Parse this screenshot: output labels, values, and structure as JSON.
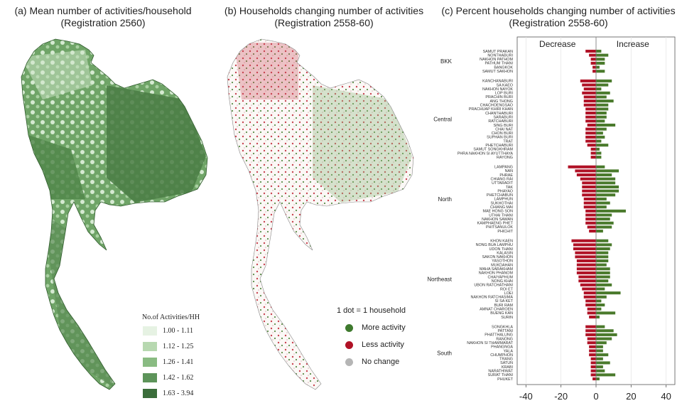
{
  "panel_a": {
    "title_line1": "(a) Mean number of activities/household",
    "title_line2": "(Registration 2560)",
    "legend_title": "No.of Activities/HH",
    "legend": [
      {
        "label": "1.00 - 1.11",
        "color": "#e6f2e3"
      },
      {
        "label": "1.12 - 1.25",
        "color": "#b7d8b0"
      },
      {
        "label": "1.26 - 1.41",
        "color": "#89bb82"
      },
      {
        "label": "1.42 - 1.62",
        "color": "#5d945a"
      },
      {
        "label": "1.63 - 3.94",
        "color": "#3a6d3a"
      }
    ]
  },
  "panel_b": {
    "title_line1": "(b) Households changing number of activities",
    "title_line2": "(Registration 2558-60)",
    "legend_note": "1 dot = 1 household",
    "legend": [
      {
        "label": "More activity",
        "color": "#3f7a2e"
      },
      {
        "label": "Less activity",
        "color": "#b01226"
      },
      {
        "label": "No change",
        "color": "#b5b5b5"
      }
    ]
  },
  "colors": {
    "decrease": "#b01226",
    "increase": "#4a7a2c",
    "map_dark": "#3e6f3a",
    "map_light": "#e6f2e3"
  },
  "chart_data": {
    "type": "bar",
    "orientation": "horizontal-diverging",
    "title_line1": "(c) Percent households changing number of activities",
    "title_line2": "(Registration 2558-60)",
    "decrease_label": "Decrease",
    "increase_label": "Increase",
    "xlim": [
      -45,
      45
    ],
    "xticks": [
      -40,
      -20,
      0,
      20,
      40
    ],
    "xtick_labels": [
      "-40",
      "-20",
      "0",
      "20",
      "40"
    ],
    "groups": [
      {
        "name": "BKK",
        "provinces": [
          {
            "name": "SAMUT PRAKAN",
            "decrease": -6,
            "increase": 3
          },
          {
            "name": "NONTHABURI",
            "decrease": -4,
            "increase": 7
          },
          {
            "name": "NAKHON PATHOM",
            "decrease": -3,
            "increase": 5
          },
          {
            "name": "PATHUM THANI",
            "decrease": -3,
            "increase": 5
          },
          {
            "name": "BANGKOK",
            "decrease": -2,
            "increase": 2
          },
          {
            "name": "SAMUT SAKHON",
            "decrease": -2,
            "increase": 5
          }
        ]
      },
      {
        "name": "Central",
        "provinces": [
          {
            "name": "KANCHANABURI",
            "decrease": -9,
            "increase": 9
          },
          {
            "name": "SA KAEO",
            "decrease": -8,
            "increase": 7
          },
          {
            "name": "NAKHON NAYOK",
            "decrease": -7,
            "increase": 3
          },
          {
            "name": "LOP BURI",
            "decrease": -8,
            "increase": 8
          },
          {
            "name": "PRACHIN BURI",
            "decrease": -7,
            "increase": 6
          },
          {
            "name": "ANG THONG",
            "decrease": -7,
            "increase": 10
          },
          {
            "name": "CHACHOENGSAO",
            "decrease": -7,
            "increase": 7
          },
          {
            "name": "PRACHUAP KHIRI KHAN",
            "decrease": -6,
            "increase": 7
          },
          {
            "name": "CHANTHABURI",
            "decrease": -6,
            "increase": 6
          },
          {
            "name": "SARABURI",
            "decrease": -6,
            "increase": 6
          },
          {
            "name": "RATCHABURI",
            "decrease": -6,
            "increase": 5
          },
          {
            "name": "SING BURI",
            "decrease": -5,
            "increase": 11
          },
          {
            "name": "CHAI NAT",
            "decrease": -6,
            "increase": 6
          },
          {
            "name": "CHON BURI",
            "decrease": -6,
            "increase": 4
          },
          {
            "name": "SUPHAN BURI",
            "decrease": -6,
            "increase": 5
          },
          {
            "name": "TRAT",
            "decrease": -6,
            "increase": 3
          },
          {
            "name": "PHETCHABURI",
            "decrease": -5,
            "increase": 7
          },
          {
            "name": "SAMUT SONGKHRAM",
            "decrease": -3,
            "increase": 2
          },
          {
            "name": "PHRA NAKHON SI AYUTTHAYA",
            "decrease": -3,
            "increase": 3
          },
          {
            "name": "RAYONG",
            "decrease": -3,
            "increase": 3
          }
        ]
      },
      {
        "name": "North",
        "provinces": [
          {
            "name": "LAMPANG",
            "decrease": -16,
            "increase": 5
          },
          {
            "name": "NAN",
            "decrease": -12,
            "increase": 13
          },
          {
            "name": "PHRAE",
            "decrease": -11,
            "increase": 9
          },
          {
            "name": "CHIANG RAI",
            "decrease": -9,
            "increase": 11
          },
          {
            "name": "UTTARADIT",
            "decrease": -8,
            "increase": 11
          },
          {
            "name": "TAK",
            "decrease": -8,
            "increase": 13
          },
          {
            "name": "PHAYAO",
            "decrease": -8,
            "increase": 13
          },
          {
            "name": "PHETCHABUN",
            "decrease": -8,
            "increase": 11
          },
          {
            "name": "LAMPHUN",
            "decrease": -7,
            "increase": 6
          },
          {
            "name": "SUKHOTHAI",
            "decrease": -7,
            "increase": 8
          },
          {
            "name": "CHIANG MAI",
            "decrease": -7,
            "increase": 6
          },
          {
            "name": "MAE HONG SON",
            "decrease": -6,
            "increase": 17
          },
          {
            "name": "UTHAI THANI",
            "decrease": -6,
            "increase": 9
          },
          {
            "name": "NAKHON SAWAN",
            "decrease": -6,
            "increase": 8
          },
          {
            "name": "KAMPHAENG PHET",
            "decrease": -6,
            "increase": 10
          },
          {
            "name": "PHITSANULOK",
            "decrease": -5,
            "increase": 9
          },
          {
            "name": "PHICHIT",
            "decrease": -4,
            "increase": 4
          }
        ]
      },
      {
        "name": "Northeast",
        "provinces": [
          {
            "name": "KHON KAEN",
            "decrease": -14,
            "increase": 7
          },
          {
            "name": "NONG BUA LAMPHU",
            "decrease": -13,
            "increase": 9
          },
          {
            "name": "UDON THANI",
            "decrease": -13,
            "increase": 8
          },
          {
            "name": "KALASIN",
            "decrease": -12,
            "increase": 7
          },
          {
            "name": "SAKON NAKHON",
            "decrease": -12,
            "increase": 7
          },
          {
            "name": "YASOTHON",
            "decrease": -11,
            "increase": 7
          },
          {
            "name": "MUKDAHAN",
            "decrease": -11,
            "increase": 6
          },
          {
            "name": "MAHA SARAKHAM",
            "decrease": -11,
            "increase": 8
          },
          {
            "name": "NAKHON PHANOM",
            "decrease": -11,
            "increase": 8
          },
          {
            "name": "CHAIYAPHUM",
            "decrease": -10,
            "increase": 8
          },
          {
            "name": "NONG KHAI",
            "decrease": -10,
            "increase": 7
          },
          {
            "name": "UBON RATCHATHANI",
            "decrease": -9,
            "increase": 9
          },
          {
            "name": "ROI ET",
            "decrease": -8,
            "increase": 5
          },
          {
            "name": "LOEI",
            "decrease": -7,
            "increase": 14
          },
          {
            "name": "NAKHON RATCHASIMA",
            "decrease": -7,
            "increase": 6
          },
          {
            "name": "SI SA KET",
            "decrease": -6,
            "increase": 3
          },
          {
            "name": "BURI RAM",
            "decrease": -6,
            "increase": 5
          },
          {
            "name": "AMNAT CHAROEN",
            "decrease": -5,
            "increase": 3
          },
          {
            "name": "BUENG KAN",
            "decrease": -5,
            "increase": 11
          },
          {
            "name": "SURIN",
            "decrease": -4,
            "increase": 2
          }
        ]
      },
      {
        "name": "South",
        "provinces": [
          {
            "name": "SONGKHLA",
            "decrease": -6,
            "increase": 5
          },
          {
            "name": "PATTANI",
            "decrease": -6,
            "increase": 10
          },
          {
            "name": "PHATTHALUNG",
            "decrease": -6,
            "increase": 12
          },
          {
            "name": "RANONG",
            "decrease": -5,
            "increase": 9
          },
          {
            "name": "NAKHON SI THAMMARAT",
            "decrease": -5,
            "increase": 6
          },
          {
            "name": "PHANGNGA",
            "decrease": -4,
            "increase": 4
          },
          {
            "name": "YALA",
            "decrease": -4,
            "increase": 4
          },
          {
            "name": "CHUMPHON",
            "decrease": -4,
            "increase": 7
          },
          {
            "name": "TRANG",
            "decrease": -3,
            "increase": 4
          },
          {
            "name": "SATUN",
            "decrease": -3,
            "increase": 8
          },
          {
            "name": "KRABI",
            "decrease": -3,
            "increase": 4
          },
          {
            "name": "NARATHIWAT",
            "decrease": -3,
            "increase": 5
          },
          {
            "name": "SURAT THANI",
            "decrease": -3,
            "increase": 11
          },
          {
            "name": "PHUKET",
            "decrease": -2,
            "increase": 2
          }
        ]
      }
    ]
  }
}
